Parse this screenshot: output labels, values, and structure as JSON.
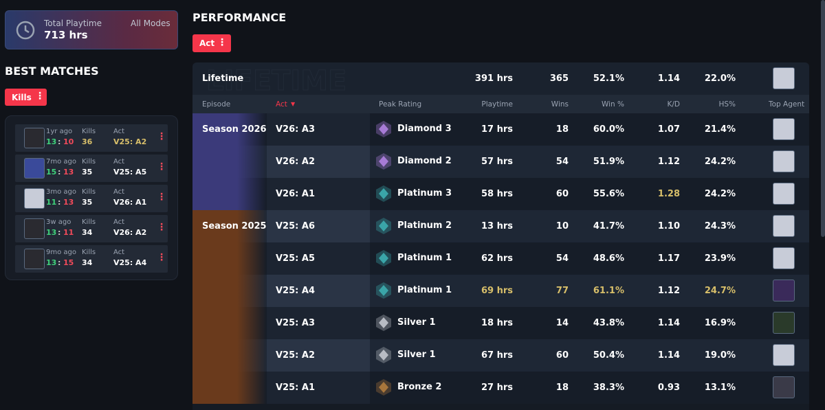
{
  "playtime": {
    "label": "Total Playtime",
    "value": "713 hrs",
    "mode": "All Modes"
  },
  "best_matches": {
    "title": "BEST MATCHES",
    "filter": "Kills",
    "score_sep": ":",
    "kills_label": "Kills",
    "act_label": "Act",
    "matches": [
      {
        "time": "1yr ago",
        "score_a": "13",
        "score_b": "10",
        "kills": "36",
        "act": "V25: A2",
        "highlight": [
          "kills",
          "act"
        ],
        "agent_color": "#2a2a30"
      },
      {
        "time": "7mo ago",
        "score_a": "15",
        "score_b": "13",
        "kills": "35",
        "act": "V25: A5",
        "highlight": [],
        "agent_color": "#3a4a9a"
      },
      {
        "time": "3mo ago",
        "score_a": "11",
        "score_b": "13",
        "kills": "35",
        "act": "V26: A1",
        "highlight": [],
        "agent_color": "#c8ccd8"
      },
      {
        "time": "3w ago",
        "score_a": "13",
        "score_b": "11",
        "kills": "34",
        "act": "V26: A2",
        "highlight": [],
        "agent_color": "#2a2a30"
      },
      {
        "time": "9mo ago",
        "score_a": "13",
        "score_b": "15",
        "kills": "34",
        "act": "V25: A4",
        "highlight": [],
        "agent_color": "#2a2a30"
      }
    ]
  },
  "performance": {
    "title": "PERFORMANCE",
    "filter": "Act",
    "lifetime": {
      "label": "Lifetime",
      "playtime": "391 hrs",
      "wins": "365",
      "win_pct": "52.1%",
      "kd": "1.14",
      "hs": "22.0%",
      "agent_color": "#c8ccd8"
    },
    "columns": {
      "episode": "Episode",
      "act": "Act",
      "rank": "Peak Rating",
      "playtime": "Playtime",
      "wins": "Wins",
      "win_pct": "Win %",
      "kd": "K/D",
      "hs": "HS%",
      "agent": "Top Agent"
    },
    "episodes": [
      {
        "name": "Season 2026",
        "color": "#3b3a7a",
        "rows": [
          {
            "act": "V26: A3",
            "rank": "Diamond 3",
            "rank_color": "#a77bd6",
            "playtime": "17 hrs",
            "wins": "18",
            "win_pct": "60.0%",
            "kd": "1.07",
            "hs": "21.4%",
            "highlight": [],
            "agent_color": "#c8ccd8"
          },
          {
            "act": "V26: A2",
            "rank": "Diamond 2",
            "rank_color": "#a77bd6",
            "playtime": "57 hrs",
            "wins": "54",
            "win_pct": "51.9%",
            "kd": "1.12",
            "hs": "24.2%",
            "highlight": [],
            "agent_color": "#c8ccd8"
          },
          {
            "act": "V26: A1",
            "rank": "Platinum 3",
            "rank_color": "#3aa5a8",
            "playtime": "58 hrs",
            "wins": "60",
            "win_pct": "55.6%",
            "kd": "1.28",
            "hs": "24.2%",
            "highlight": [
              "kd"
            ],
            "agent_color": "#c8ccd8"
          }
        ]
      },
      {
        "name": "Season 2025",
        "color": "#6a3a1c",
        "rows": [
          {
            "act": "V25: A6",
            "rank": "Platinum 2",
            "rank_color": "#3aa5a8",
            "playtime": "13 hrs",
            "wins": "10",
            "win_pct": "41.7%",
            "kd": "1.10",
            "hs": "24.3%",
            "highlight": [],
            "agent_color": "#c8ccd8"
          },
          {
            "act": "V25: A5",
            "rank": "Platinum 1",
            "rank_color": "#3aa5a8",
            "playtime": "62 hrs",
            "wins": "54",
            "win_pct": "48.6%",
            "kd": "1.17",
            "hs": "23.9%",
            "highlight": [],
            "agent_color": "#c8ccd8"
          },
          {
            "act": "V25: A4",
            "rank": "Platinum 1",
            "rank_color": "#3aa5a8",
            "playtime": "69 hrs",
            "wins": "77",
            "win_pct": "61.1%",
            "kd": "1.12",
            "hs": "24.7%",
            "highlight": [
              "playtime",
              "wins",
              "win_pct",
              "hs"
            ],
            "agent_color": "#3a2a5a"
          },
          {
            "act": "V25: A3",
            "rank": "Silver 1",
            "rank_color": "#b8bcc4",
            "playtime": "18 hrs",
            "wins": "14",
            "win_pct": "43.8%",
            "kd": "1.14",
            "hs": "16.9%",
            "highlight": [],
            "agent_color": "#2a3a2a"
          },
          {
            "act": "V25: A2",
            "rank": "Silver 1",
            "rank_color": "#b8bcc4",
            "playtime": "67 hrs",
            "wins": "60",
            "win_pct": "50.4%",
            "kd": "1.14",
            "hs": "19.0%",
            "highlight": [],
            "agent_color": "#c8ccd8"
          },
          {
            "act": "V25: A1",
            "rank": "Bronze 2",
            "rank_color": "#a8763c",
            "playtime": "27 hrs",
            "wins": "18",
            "win_pct": "38.3%",
            "kd": "0.93",
            "hs": "13.1%",
            "highlight": [],
            "agent_color": "#3a3a48"
          }
        ]
      }
    ]
  }
}
